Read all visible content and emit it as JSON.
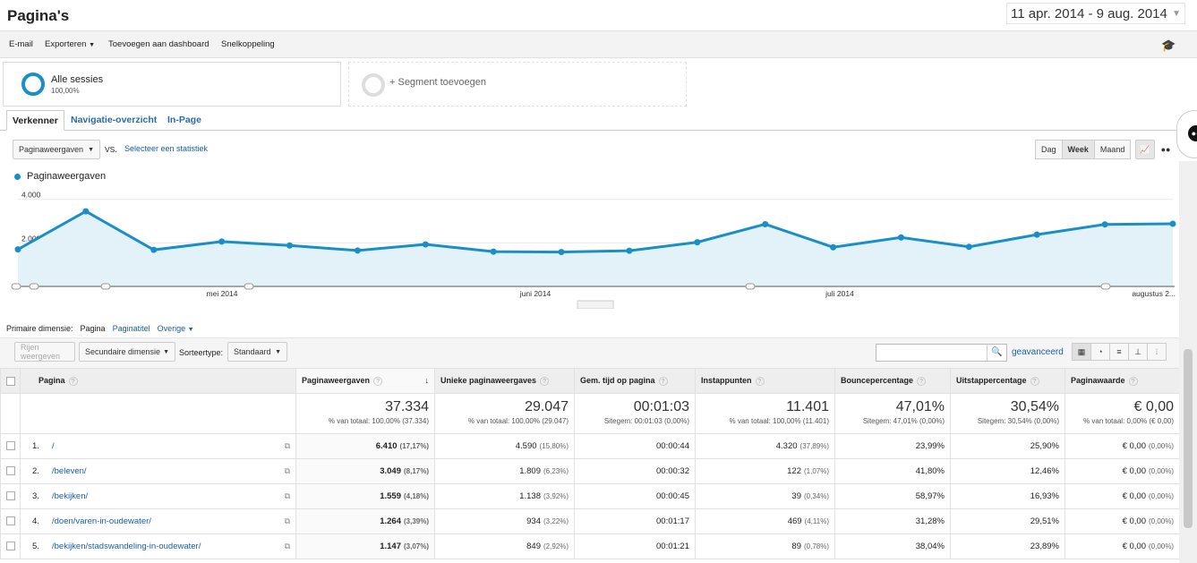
{
  "header": {
    "title": "Pagina's",
    "date_range": "11 apr. 2014 - 9 aug. 2014"
  },
  "toolbar": {
    "email": "E-mail",
    "export": "Exporteren",
    "add_dashboard": "Toevoegen aan dashboard",
    "shortcut": "Snelkoppeling"
  },
  "segments": {
    "all_name": "Alle sessies",
    "all_pct": "100,00%",
    "add": "+ Segment toevoegen"
  },
  "tabs": [
    "Verkenner",
    "Navigatie-overzicht",
    "In-Page"
  ],
  "metric": {
    "selected": "Paginaweergaven",
    "vs": "VS.",
    "select_stat": "Selecteer een statistiek"
  },
  "periods": {
    "day": "Dag",
    "week": "Week",
    "month": "Maand"
  },
  "chart_data": {
    "type": "area",
    "series": [
      {
        "name": "Paginaweergaven",
        "values": [
          1700,
          3450,
          1680,
          2060,
          1880,
          1650,
          1930,
          1600,
          1580,
          1640,
          2030,
          2860,
          1800,
          2250,
          1820,
          2380,
          2850,
          2880
        ]
      }
    ],
    "ylim": [
      0,
      4400
    ],
    "y_ticks": [
      "4.000",
      "2.000"
    ],
    "x_tick_labels": [
      "mei 2014",
      "juni 2014",
      "juli 2014",
      "augustus 2..."
    ],
    "color": "#1a8ec7"
  },
  "dimension": {
    "label": "Primaire dimensie:",
    "current": "Pagina",
    "alt": "Paginatitel",
    "other": "Overige"
  },
  "filters": {
    "plot_rows": "Rijen weergeven",
    "secondary": "Secundaire dimensie",
    "sort_label": "Sorteertype:",
    "sort_value": "Standaard",
    "advanced": "geavanceerd"
  },
  "table": {
    "columns": [
      "Pagina",
      "Paginaweergaven",
      "Unieke paginaweergaves",
      "Gem. tijd op pagina",
      "Instappunten",
      "Bouncepercentage",
      "Uitstappercentage",
      "Paginawaarde"
    ],
    "totals": [
      {
        "value": "37.334",
        "sub": "% van totaal: 100,00% (37.334)"
      },
      {
        "value": "29.047",
        "sub": "% van totaal: 100,00% (29.047)"
      },
      {
        "value": "00:01:03",
        "sub": "Sitegem: 00:01:03 (0,00%)"
      },
      {
        "value": "11.401",
        "sub": "% van totaal: 100,00% (11.401)"
      },
      {
        "value": "47,01%",
        "sub": "Sitegem: 47,01% (0,00%)"
      },
      {
        "value": "30,54%",
        "sub": "Sitegem: 30,54% (0,00%)"
      },
      {
        "value": "€ 0,00",
        "sub": "% van totaal: 0,00% (€ 0,00)"
      }
    ],
    "rows": [
      {
        "idx": "1.",
        "page": "/",
        "pv": "6.410",
        "pv_pct": "(17,17%)",
        "upv": "4.590",
        "upv_pct": "(15,80%)",
        "time": "00:00:44",
        "entr": "4.320",
        "entr_pct": "(37,89%)",
        "bounce": "23,99%",
        "exit": "25,90%",
        "val": "€ 0,00",
        "val_pct": "(0,00%)"
      },
      {
        "idx": "2.",
        "page": "/beleven/",
        "pv": "3.049",
        "pv_pct": "(8,17%)",
        "upv": "1.809",
        "upv_pct": "(6,23%)",
        "time": "00:00:32",
        "entr": "122",
        "entr_pct": "(1,07%)",
        "bounce": "41,80%",
        "exit": "12,46%",
        "val": "€ 0,00",
        "val_pct": "(0,00%)"
      },
      {
        "idx": "3.",
        "page": "/bekijken/",
        "pv": "1.559",
        "pv_pct": "(4,18%)",
        "upv": "1.138",
        "upv_pct": "(3,92%)",
        "time": "00:00:45",
        "entr": "39",
        "entr_pct": "(0,34%)",
        "bounce": "58,97%",
        "exit": "16,93%",
        "val": "€ 0,00",
        "val_pct": "(0,00%)"
      },
      {
        "idx": "4.",
        "page": "/doen/varen-in-oudewater/",
        "pv": "1.264",
        "pv_pct": "(3,39%)",
        "upv": "934",
        "upv_pct": "(3,22%)",
        "time": "00:01:17",
        "entr": "469",
        "entr_pct": "(4,11%)",
        "bounce": "31,28%",
        "exit": "29,51%",
        "val": "€ 0,00",
        "val_pct": "(0,00%)"
      },
      {
        "idx": "5.",
        "page": "/bekijken/stadswandeling-in-oudewater/",
        "pv": "1.147",
        "pv_pct": "(3,07%)",
        "upv": "849",
        "upv_pct": "(2,92%)",
        "time": "00:01:21",
        "entr": "89",
        "entr_pct": "(0,78%)",
        "bounce": "38,04%",
        "exit": "23,89%",
        "val": "€ 0,00",
        "val_pct": "(0,00%)"
      }
    ]
  }
}
